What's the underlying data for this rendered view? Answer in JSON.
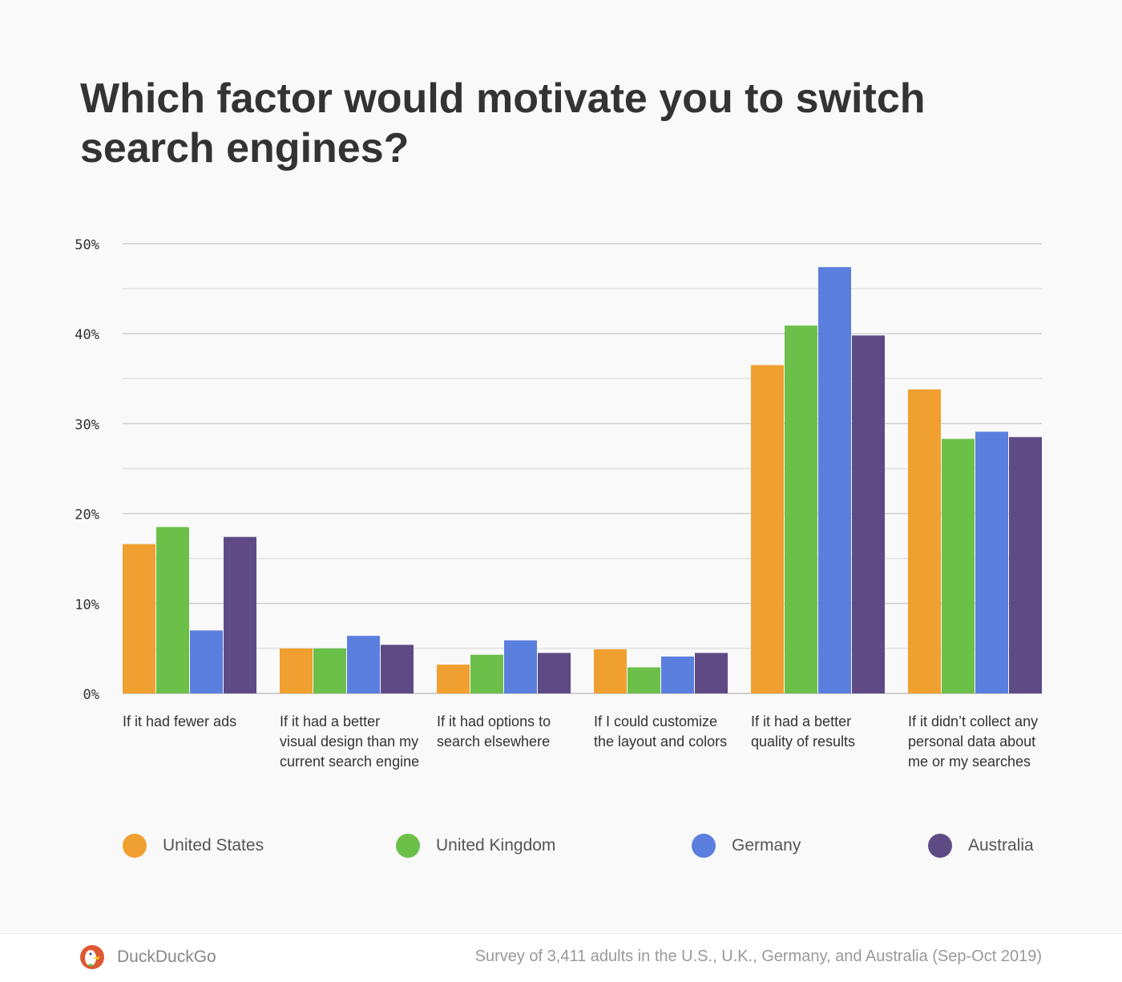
{
  "chart_data": {
    "type": "bar",
    "title": "Which factor would motivate you to switch search engines?",
    "categories": [
      "If it had fewer ads",
      "If it had a better visual design than my current search engine",
      "If it had options to search elsewhere",
      "If I could customize the layout and colors",
      "If it had a better quality of results",
      "If it didn’t collect any personal data about me or my searches"
    ],
    "series": [
      {
        "name": "United States",
        "color": "#f0a030",
        "values": [
          16.6,
          5.0,
          3.2,
          4.9,
          36.5,
          33.8
        ]
      },
      {
        "name": "United Kingdom",
        "color": "#6cc04a",
        "values": [
          18.5,
          5.0,
          4.3,
          2.9,
          40.9,
          28.3
        ]
      },
      {
        "name": "Germany",
        "color": "#5b7fde",
        "values": [
          7.0,
          6.4,
          5.9,
          4.1,
          47.4,
          29.1
        ]
      },
      {
        "name": "Australia",
        "color": "#5e4a85",
        "values": [
          17.4,
          5.4,
          4.5,
          4.5,
          39.8,
          28.5
        ]
      }
    ],
    "ylim": [
      0,
      50
    ],
    "yticks": [
      "0%",
      "10%",
      "20%",
      "30%",
      "40%",
      "50%"
    ],
    "grid": true,
    "legend": "bottom"
  },
  "footer": {
    "brand": "DuckDuckGo",
    "source": "Survey of 3,411 adults in the U.S., U.K., Germany, and Australia (Sep-Oct 2019)"
  }
}
